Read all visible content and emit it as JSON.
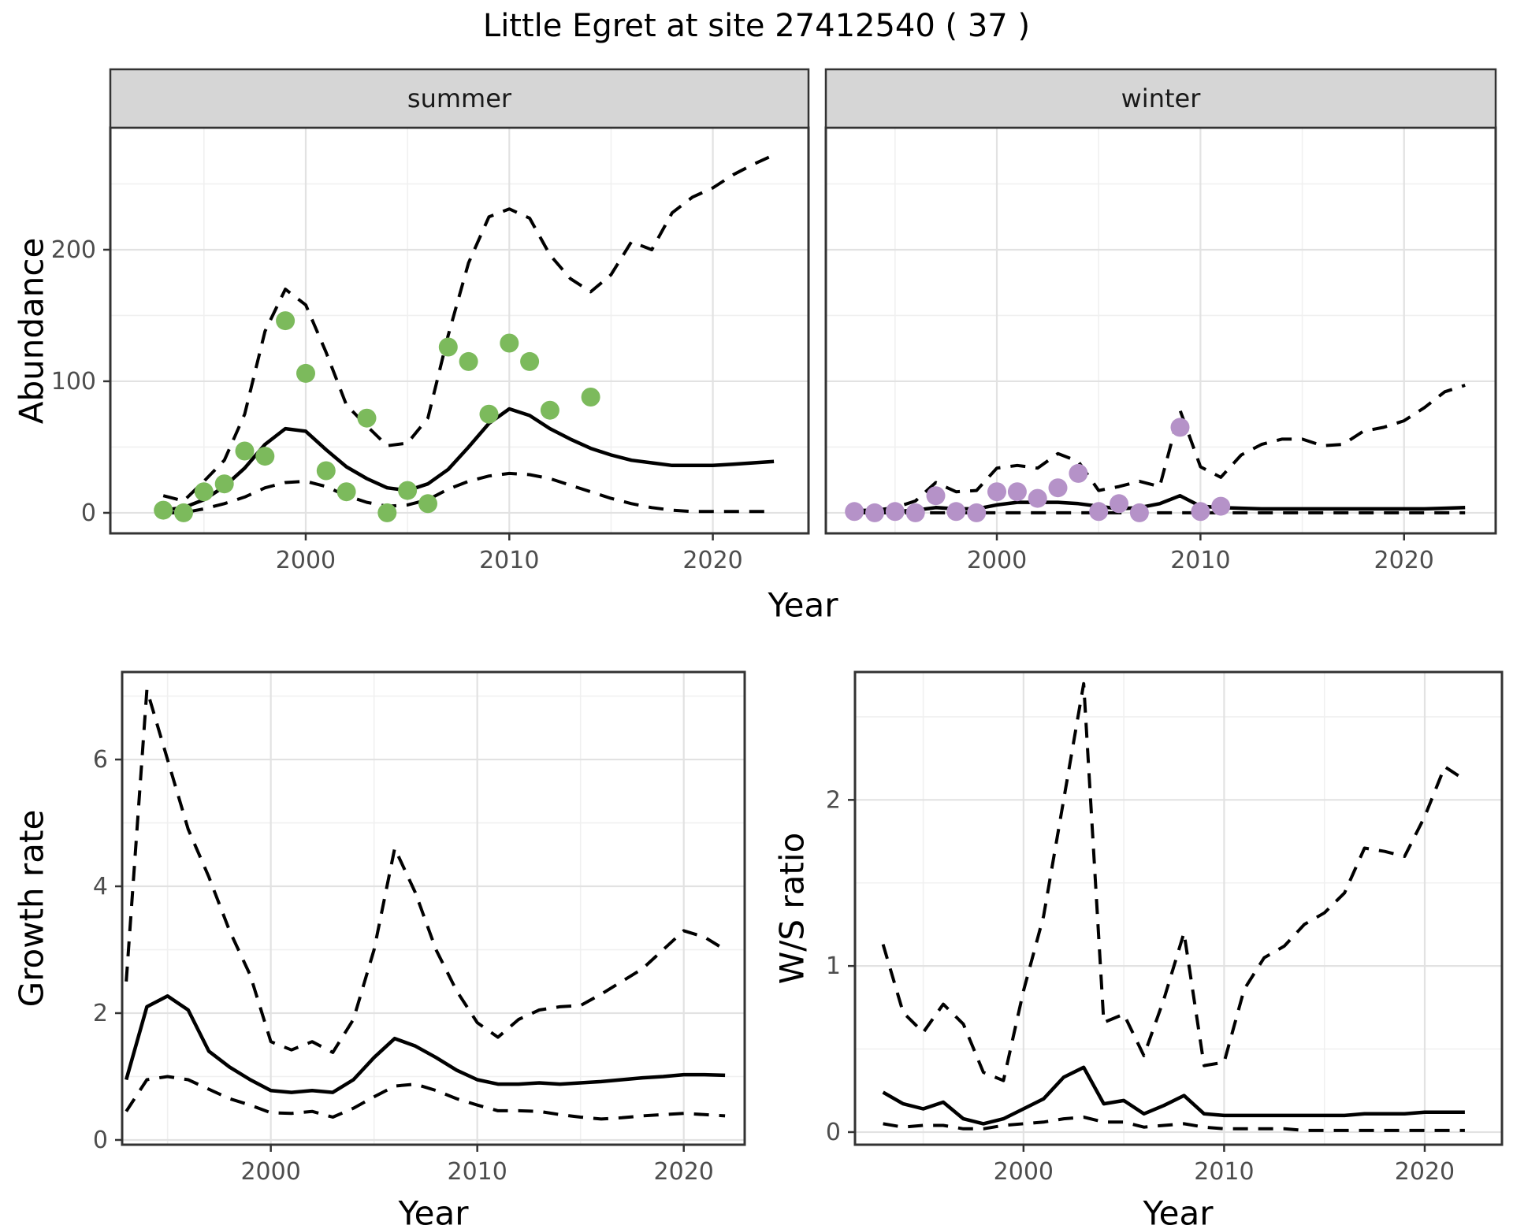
{
  "title": "Little Egret at site 27412540 ( 37 )",
  "colors": {
    "background": "#ffffff",
    "summer_point": "#7cba5c",
    "winter_point": "#b592c8",
    "series_line": "#000000",
    "grid_major": "#e2e2e2",
    "grid_minor": "#f0f0f0",
    "panel_border": "#333333",
    "strip_bg": "#d6d6d6",
    "tick_text": "#4d4d4d"
  },
  "chart_data": [
    {
      "id": "abundance-summer",
      "type": "line+scatter",
      "strip_label": "summer",
      "ylabel": "Abundance",
      "xlabel": "Year",
      "xlim": [
        1990.4,
        2024.7
      ],
      "ylim": [
        -15.6,
        292.8
      ],
      "xticks": {
        "values": [
          2000,
          2010,
          2020
        ],
        "labels": [
          "2000",
          "2010",
          "2020"
        ],
        "minor": [
          1995,
          2005,
          2015
        ]
      },
      "yticks": {
        "values": [
          0,
          100,
          200
        ],
        "labels": [
          "0",
          "100",
          "200"
        ],
        "minor": [
          50,
          150,
          250
        ]
      },
      "points": {
        "years": [
          1993,
          1994,
          1995,
          1996,
          1997,
          1998,
          1999,
          2000,
          2001,
          2002,
          2003,
          2004,
          2005,
          2006,
          2007,
          2008,
          2009,
          2010,
          2011,
          2012,
          2014
        ],
        "values": [
          2,
          0,
          16,
          22,
          47,
          43,
          146,
          106,
          32,
          16,
          72,
          0,
          17,
          7,
          126,
          115,
          75,
          129,
          115,
          78,
          88
        ]
      },
      "fit": {
        "years": [
          1993,
          1994,
          1995,
          1996,
          1997,
          1998,
          1999,
          2000,
          2001,
          2002,
          2003,
          2004,
          2005,
          2006,
          2007,
          2008,
          2009,
          2010,
          2011,
          2012,
          2013,
          2014,
          2015,
          2016,
          2017,
          2018,
          2019,
          2020,
          2021,
          2022,
          2023
        ],
        "values": [
          2,
          4,
          10,
          20,
          34,
          52,
          64,
          62,
          48,
          35,
          26,
          19,
          17,
          22,
          33,
          50,
          68,
          79,
          74,
          64,
          56,
          49,
          44,
          40,
          38,
          36,
          36,
          36,
          37,
          38,
          39
        ]
      },
      "upper": {
        "years": [
          1993,
          1994,
          1995,
          1996,
          1997,
          1998,
          1999,
          2000,
          2001,
          2002,
          2003,
          2004,
          2005,
          2006,
          2007,
          2008,
          2009,
          2010,
          2011,
          2012,
          2013,
          2014,
          2015,
          2016,
          2017,
          2018,
          2019,
          2020,
          2021,
          2022,
          2023
        ],
        "values": [
          13,
          9,
          24,
          40,
          75,
          138,
          170,
          158,
          122,
          82,
          66,
          51,
          53,
          72,
          135,
          190,
          225,
          231,
          224,
          196,
          178,
          168,
          181,
          206,
          200,
          228,
          240,
          247,
          257,
          265,
          272
        ]
      },
      "lower": {
        "years": [
          1993,
          1994,
          1995,
          1996,
          1997,
          1998,
          1999,
          2000,
          2001,
          2002,
          2003,
          2004,
          2005,
          2006,
          2007,
          2008,
          2009,
          2010,
          2011,
          2012,
          2013,
          2014,
          2015,
          2016,
          2017,
          2018,
          2019,
          2020,
          2021,
          2022,
          2023
        ],
        "values": [
          0,
          0,
          3,
          7,
          12,
          19,
          23,
          24,
          20,
          13,
          8,
          5,
          6,
          10,
          18,
          24,
          28,
          30,
          29,
          26,
          21,
          16,
          11,
          7,
          4,
          2,
          1,
          1,
          1,
          1,
          1
        ]
      }
    },
    {
      "id": "abundance-winter",
      "type": "line+scatter",
      "strip_label": "winter",
      "ylabel": "Abundance",
      "xlabel": "Year",
      "xlim": [
        1991.6,
        2024.5
      ],
      "ylim": [
        -15.6,
        292.8
      ],
      "xticks": {
        "values": [
          2000,
          2010,
          2020
        ],
        "labels": [
          "2000",
          "2010",
          "2020"
        ],
        "minor": [
          1995,
          2005,
          2015
        ]
      },
      "yticks": {
        "values": [
          0,
          100,
          200
        ],
        "labels": [
          "0",
          "100",
          "200"
        ],
        "minor": [
          50,
          150,
          250
        ]
      },
      "points": {
        "years": [
          1993,
          1994,
          1995,
          1996,
          1997,
          1998,
          1999,
          2000,
          2001,
          2002,
          2003,
          2004,
          2005,
          2006,
          2007,
          2009,
          2010,
          2011
        ],
        "values": [
          1,
          0,
          1,
          0,
          13,
          1,
          0,
          16,
          16,
          11,
          19,
          30,
          1,
          7,
          0,
          65,
          1,
          5
        ]
      },
      "fit": {
        "years": [
          1993,
          1994,
          1995,
          1996,
          1997,
          1998,
          1999,
          2000,
          2001,
          2002,
          2003,
          2004,
          2005,
          2006,
          2007,
          2008,
          2009,
          2010,
          2011,
          2012,
          2013,
          2014,
          2015,
          2016,
          2017,
          2018,
          2019,
          2020,
          2021,
          2022,
          2023
        ],
        "values": [
          1,
          1,
          1,
          2,
          4,
          3,
          3,
          6,
          8,
          8,
          8,
          7,
          5,
          3,
          4,
          7,
          13,
          5,
          4,
          3.5,
          3,
          3,
          3,
          3,
          3,
          3,
          3,
          3,
          3,
          3.5,
          4
        ]
      },
      "upper": {
        "years": [
          1993,
          1994,
          1995,
          1996,
          1997,
          1998,
          1999,
          2000,
          2001,
          2002,
          2003,
          2004,
          2005,
          2006,
          2007,
          2008,
          2009,
          2010,
          2011,
          2012,
          2013,
          2014,
          2015,
          2016,
          2017,
          2018,
          2019,
          2020,
          2021,
          2022,
          2023
        ],
        "values": [
          2,
          2,
          4,
          9,
          23,
          16,
          17,
          34,
          36,
          34,
          45,
          39,
          17,
          20,
          24,
          20,
          78,
          35,
          27,
          44,
          52,
          56,
          56,
          51,
          52,
          62,
          65,
          70,
          80,
          92,
          97
        ]
      },
      "lower": {
        "years": [
          1993,
          1994,
          1995,
          1996,
          1997,
          1998,
          1999,
          2000,
          2001,
          2002,
          2003,
          2004,
          2005,
          2006,
          2007,
          2008,
          2009,
          2010,
          2011,
          2012,
          2013,
          2014,
          2015,
          2016,
          2017,
          2018,
          2019,
          2020,
          2021,
          2022,
          2023
        ],
        "values": [
          0,
          0,
          0,
          0,
          0,
          0,
          0,
          0,
          0,
          0,
          0,
          0,
          0,
          0,
          0,
          0,
          0,
          0,
          0,
          0,
          0,
          0,
          0,
          0,
          0,
          0,
          0,
          0,
          0,
          0,
          0
        ]
      }
    },
    {
      "id": "growth-rate",
      "type": "line",
      "strip_label": null,
      "ylabel": "Growth rate",
      "xlabel": "Year",
      "xlim": [
        1992.8,
        2022.95
      ],
      "ylim": [
        -0.075,
        7.38
      ],
      "xticks": {
        "values": [
          2000,
          2010,
          2020
        ],
        "labels": [
          "2000",
          "2010",
          "2020"
        ],
        "minor": [
          1995,
          2005,
          2015
        ]
      },
      "yticks": {
        "values": [
          0,
          2,
          4,
          6
        ],
        "labels": [
          "0",
          "2",
          "4",
          "6"
        ],
        "minor": [
          1,
          3,
          5,
          7
        ]
      },
      "points": null,
      "fit": {
        "years": [
          1993,
          1994,
          1995,
          1996,
          1997,
          1998,
          1999,
          2000,
          2001,
          2002,
          2003,
          2004,
          2005,
          2006,
          2007,
          2008,
          2009,
          2010,
          2011,
          2012,
          2013,
          2014,
          2015,
          2016,
          2017,
          2018,
          2019,
          2020,
          2021,
          2022
        ],
        "values": [
          0.95,
          2.1,
          2.27,
          2.05,
          1.4,
          1.15,
          0.95,
          0.78,
          0.75,
          0.78,
          0.75,
          0.95,
          1.3,
          1.6,
          1.48,
          1.3,
          1.1,
          0.95,
          0.88,
          0.88,
          0.9,
          0.88,
          0.9,
          0.92,
          0.95,
          0.98,
          1.0,
          1.03,
          1.03,
          1.02
        ]
      },
      "upper": {
        "years": [
          1993,
          1994,
          1995,
          1996,
          1997,
          1998,
          1999,
          2000,
          2001,
          2002,
          2003,
          2004,
          2005,
          2006,
          2007,
          2008,
          2009,
          2010,
          2011,
          2012,
          2013,
          2014,
          2015,
          2016,
          2017,
          2018,
          2019,
          2020,
          2021,
          2022
        ],
        "values": [
          2.5,
          7.1,
          6.0,
          4.9,
          4.15,
          3.3,
          2.6,
          1.55,
          1.42,
          1.55,
          1.38,
          1.9,
          3.0,
          4.6,
          3.9,
          3.0,
          2.35,
          1.85,
          1.62,
          1.9,
          2.05,
          2.1,
          2.12,
          2.3,
          2.5,
          2.7,
          3.0,
          3.3,
          3.2,
          3.0
        ]
      },
      "lower": {
        "years": [
          1993,
          1994,
          1995,
          1996,
          1997,
          1998,
          1999,
          2000,
          2001,
          2002,
          2003,
          2004,
          2005,
          2006,
          2007,
          2008,
          2009,
          2010,
          2011,
          2012,
          2013,
          2014,
          2015,
          2016,
          2017,
          2018,
          2019,
          2020,
          2021,
          2022
        ],
        "values": [
          0.45,
          0.95,
          1.0,
          0.95,
          0.8,
          0.65,
          0.55,
          0.43,
          0.42,
          0.45,
          0.36,
          0.5,
          0.68,
          0.85,
          0.88,
          0.78,
          0.65,
          0.55,
          0.46,
          0.46,
          0.45,
          0.4,
          0.36,
          0.33,
          0.35,
          0.38,
          0.4,
          0.42,
          0.4,
          0.38
        ]
      }
    },
    {
      "id": "ws-ratio",
      "type": "line",
      "strip_label": null,
      "ylabel": "W/S ratio",
      "xlabel": "Year",
      "xlim": [
        1991.6,
        2023.85
      ],
      "ylim": [
        -0.076,
        2.77
      ],
      "xticks": {
        "values": [
          2000,
          2010,
          2020
        ],
        "labels": [
          "2000",
          "2010",
          "2020"
        ],
        "minor": [
          1995,
          2005,
          2015
        ]
      },
      "yticks": {
        "values": [
          0,
          1,
          2
        ],
        "labels": [
          "0",
          "1",
          "2"
        ],
        "minor": [
          0.5,
          1.5,
          2.5
        ]
      },
      "points": null,
      "fit": {
        "years": [
          1993,
          1994,
          1995,
          1996,
          1997,
          1998,
          1999,
          2000,
          2001,
          2002,
          2003,
          2004,
          2005,
          2006,
          2007,
          2008,
          2009,
          2010,
          2011,
          2012,
          2013,
          2014,
          2015,
          2016,
          2017,
          2018,
          2019,
          2020,
          2021,
          2022
        ],
        "values": [
          0.24,
          0.17,
          0.14,
          0.18,
          0.08,
          0.05,
          0.08,
          0.14,
          0.2,
          0.33,
          0.39,
          0.17,
          0.19,
          0.11,
          0.16,
          0.22,
          0.11,
          0.1,
          0.1,
          0.1,
          0.1,
          0.1,
          0.1,
          0.1,
          0.11,
          0.11,
          0.11,
          0.12,
          0.12,
          0.12
        ]
      },
      "upper": {
        "years": [
          1993,
          1994,
          1995,
          1996,
          1997,
          1998,
          1999,
          2000,
          2001,
          2002,
          2003,
          2004,
          2005,
          2006,
          2007,
          2008,
          2009,
          2010,
          2011,
          2012,
          2013,
          2014,
          2015,
          2016,
          2017,
          2018,
          2019,
          2020,
          2021,
          2022
        ],
        "values": [
          1.13,
          0.72,
          0.6,
          0.77,
          0.65,
          0.36,
          0.31,
          0.85,
          1.3,
          2.0,
          2.7,
          0.66,
          0.71,
          0.46,
          0.8,
          1.2,
          0.4,
          0.42,
          0.86,
          1.05,
          1.12,
          1.25,
          1.32,
          1.44,
          1.71,
          1.69,
          1.66,
          1.9,
          2.2,
          2.12
        ]
      },
      "lower": {
        "years": [
          1993,
          1994,
          1995,
          1996,
          1997,
          1998,
          1999,
          2000,
          2001,
          2002,
          2003,
          2004,
          2005,
          2006,
          2007,
          2008,
          2009,
          2010,
          2011,
          2012,
          2013,
          2014,
          2015,
          2016,
          2017,
          2018,
          2019,
          2020,
          2021,
          2022
        ],
        "values": [
          0.05,
          0.03,
          0.04,
          0.04,
          0.02,
          0.02,
          0.04,
          0.05,
          0.06,
          0.08,
          0.09,
          0.06,
          0.06,
          0.03,
          0.04,
          0.05,
          0.03,
          0.02,
          0.02,
          0.02,
          0.02,
          0.01,
          0.01,
          0.01,
          0.01,
          0.01,
          0.01,
          0.01,
          0.01,
          0.01
        ]
      }
    }
  ]
}
